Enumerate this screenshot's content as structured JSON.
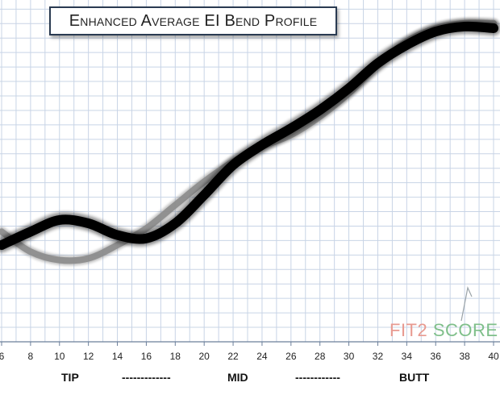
{
  "title": "Enhanced Average EI Bend Profile",
  "zones": [
    "TIP",
    "-------------",
    "MID",
    "------------",
    "BUTT"
  ],
  "logo": {
    "part1": "FIT2",
    "part2": "SCORE"
  },
  "colors": {
    "grid": "#c8d4e6",
    "series_main": "#000000",
    "series_compare": "#8c8c8c",
    "logo_fit": "#e89a90",
    "logo_score": "#7fbf8a"
  },
  "chart_data": {
    "type": "line",
    "title": "Enhanced Average EI Bend Profile",
    "xlabel": "",
    "ylabel": "",
    "xlim": [
      6,
      40
    ],
    "ylim": [
      0,
      10
    ],
    "xticks": [
      6,
      8,
      10,
      12,
      14,
      16,
      18,
      20,
      22,
      24,
      26,
      28,
      30,
      32,
      34,
      36,
      38,
      40
    ],
    "grid": true,
    "series": [
      {
        "style": "compare",
        "x": [
          6,
          8,
          10,
          12,
          14,
          16,
          18,
          20,
          22,
          24,
          26,
          28,
          30,
          32,
          34,
          36,
          38,
          40
        ],
        "y": [
          3.3,
          2.7,
          2.45,
          2.5,
          2.9,
          3.4,
          4.1,
          4.8,
          5.4,
          5.85,
          6.2,
          6.75,
          7.45,
          8.3,
          9.0,
          9.4,
          9.55,
          9.55
        ]
      },
      {
        "style": "main",
        "x": [
          6,
          8,
          10,
          12,
          14,
          16,
          18,
          20,
          22,
          24,
          26,
          28,
          30,
          32,
          34,
          36,
          38,
          40
        ],
        "y": [
          2.9,
          3.3,
          3.65,
          3.55,
          3.2,
          3.1,
          3.55,
          4.4,
          5.3,
          5.9,
          6.4,
          6.95,
          7.6,
          8.35,
          8.9,
          9.3,
          9.45,
          9.4
        ]
      }
    ]
  }
}
